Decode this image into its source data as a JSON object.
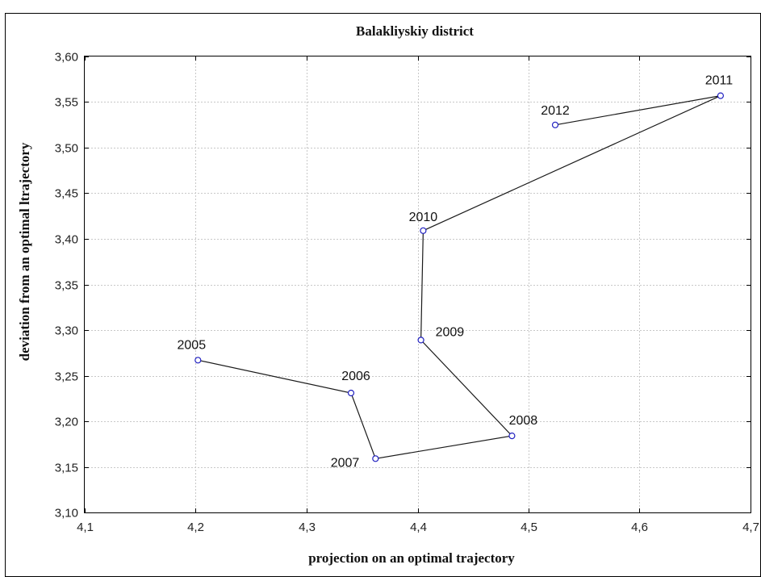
{
  "chart_data": {
    "type": "line",
    "title": "Balakliyskiy district",
    "xlabel": "projection on an optimal trajectory",
    "ylabel": "deviation from an optimal ltrajectory",
    "xlim": [
      4.1,
      4.7
    ],
    "ylim": [
      3.1,
      3.6
    ],
    "xticks": [
      "4,1",
      "4,2",
      "4,3",
      "4,4",
      "4,5",
      "4,6",
      "4,7"
    ],
    "yticks": [
      "3,10",
      "3,15",
      "3,20",
      "3,25",
      "3,30",
      "3,35",
      "3,40",
      "3,45",
      "3,50",
      "3,55",
      "3,60"
    ],
    "grid": true,
    "colors": {
      "line": "#1a1a1a",
      "marker": "#2020c0",
      "grid": "#c8c8c8"
    },
    "points": [
      {
        "label": "2005",
        "x": 4.202,
        "y": 3.267
      },
      {
        "label": "2006",
        "x": 4.34,
        "y": 3.231
      },
      {
        "label": "2007",
        "x": 4.362,
        "y": 3.159
      },
      {
        "label": "2008",
        "x": 4.485,
        "y": 3.184
      },
      {
        "label": "2009",
        "x": 4.403,
        "y": 3.289
      },
      {
        "label": "2010",
        "x": 4.405,
        "y": 3.409
      },
      {
        "label": "2011",
        "x": 4.673,
        "y": 3.557
      },
      {
        "label": "2012",
        "x": 4.524,
        "y": 3.525
      }
    ]
  }
}
